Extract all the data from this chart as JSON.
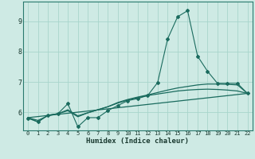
{
  "xlabel": "Humidex (Indice chaleur)",
  "xlim": [
    -0.5,
    22.5
  ],
  "ylim": [
    5.4,
    9.65
  ],
  "xticks": [
    0,
    1,
    2,
    3,
    4,
    5,
    6,
    7,
    8,
    9,
    10,
    11,
    12,
    13,
    14,
    15,
    16,
    17,
    18,
    19,
    20,
    21,
    22
  ],
  "yticks": [
    6,
    7,
    8,
    9
  ],
  "bg_color": "#ceeae4",
  "line_color": "#1a6b5e",
  "grid_color": "#a8d5cc",
  "line1_x": [
    0,
    1,
    2,
    3,
    4,
    5,
    6,
    7,
    8,
    9,
    10,
    11,
    12,
    13,
    14,
    15,
    16,
    17,
    18,
    19,
    20,
    21,
    22
  ],
  "line1_y": [
    5.8,
    5.68,
    5.9,
    5.95,
    6.28,
    5.52,
    5.82,
    5.82,
    6.05,
    6.22,
    6.38,
    6.45,
    6.55,
    6.98,
    8.42,
    9.15,
    9.35,
    7.85,
    7.35,
    6.95,
    6.95,
    6.95,
    6.62
  ],
  "line2_x": [
    0,
    1,
    2,
    3,
    4,
    5,
    6,
    7,
    8,
    9,
    10,
    11,
    12,
    13,
    14,
    15,
    16,
    17,
    18,
    19,
    20,
    21,
    22
  ],
  "line2_y": [
    5.82,
    5.68,
    5.9,
    5.95,
    6.05,
    5.85,
    5.98,
    6.08,
    6.18,
    6.32,
    6.42,
    6.5,
    6.57,
    6.65,
    6.73,
    6.8,
    6.85,
    6.9,
    6.93,
    6.93,
    6.92,
    6.9,
    6.62
  ],
  "line3_x": [
    0,
    22
  ],
  "line3_y": [
    5.82,
    6.62
  ],
  "line4_x": [
    0,
    1,
    2,
    3,
    4,
    5,
    6,
    7,
    8,
    9,
    10,
    11,
    12,
    13,
    14,
    15,
    16,
    17,
    18,
    19,
    20,
    21,
    22
  ],
  "line4_y": [
    5.82,
    5.73,
    5.88,
    5.95,
    6.08,
    5.88,
    5.98,
    6.08,
    6.18,
    6.3,
    6.4,
    6.48,
    6.55,
    6.6,
    6.65,
    6.7,
    6.73,
    6.75,
    6.76,
    6.75,
    6.73,
    6.7,
    6.62
  ]
}
